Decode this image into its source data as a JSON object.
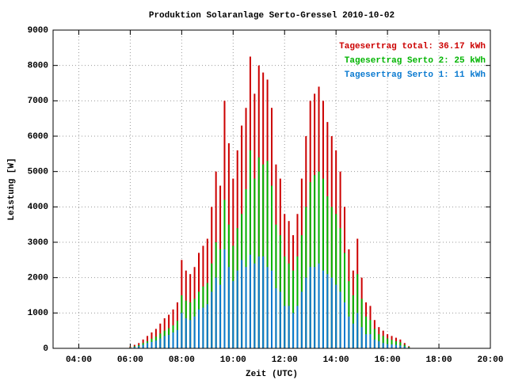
{
  "chart_data": {
    "type": "bar",
    "title": "Produktion Solaranlage Serto-Gressel 2010-10-02",
    "x_label": "Zeit (UTC)",
    "y_label": "Leistung [W]",
    "x": [
      "06:00",
      "06:10",
      "06:20",
      "06:30",
      "06:40",
      "06:50",
      "07:00",
      "07:10",
      "07:20",
      "07:30",
      "07:40",
      "07:50",
      "08:00",
      "08:10",
      "08:20",
      "08:30",
      "08:40",
      "08:50",
      "09:00",
      "09:10",
      "09:20",
      "09:30",
      "09:40",
      "09:50",
      "10:00",
      "10:10",
      "10:20",
      "10:30",
      "10:40",
      "10:50",
      "11:00",
      "11:10",
      "11:20",
      "11:30",
      "11:40",
      "11:50",
      "12:00",
      "12:10",
      "12:20",
      "12:30",
      "12:40",
      "12:50",
      "13:00",
      "13:10",
      "13:20",
      "13:30",
      "13:40",
      "13:50",
      "14:00",
      "14:10",
      "14:20",
      "14:30",
      "14:40",
      "14:50",
      "15:00",
      "15:10",
      "15:20",
      "15:30",
      "15:40",
      "15:50",
      "16:00",
      "16:10",
      "16:20",
      "16:30",
      "16:40",
      "16:50"
    ],
    "series": [
      {
        "name": "Tagesertrag total: 36.17 kWh",
        "color": "#cc0000",
        "values": [
          50,
          100,
          150,
          250,
          350,
          450,
          550,
          700,
          850,
          950,
          1100,
          1300,
          2500,
          2200,
          2100,
          2300,
          2700,
          2900,
          3100,
          4000,
          5000,
          4600,
          7000,
          5800,
          4800,
          5600,
          6300,
          6800,
          8250,
          7200,
          8000,
          7800,
          7600,
          6800,
          5200,
          4800,
          3800,
          3600,
          3200,
          3800,
          4800,
          6000,
          7000,
          7200,
          7400,
          7000,
          6400,
          6000,
          5600,
          5000,
          4000,
          2800,
          2200,
          3100,
          2000,
          1300,
          1200,
          800,
          600,
          500,
          400,
          350,
          300,
          250,
          150,
          60
        ]
      },
      {
        "name": "Tagesertrag Serto 2: 25 kWh",
        "color": "#00b400",
        "values": [
          30,
          60,
          90,
          150,
          200,
          270,
          330,
          420,
          500,
          570,
          650,
          780,
          1500,
          1350,
          1300,
          1400,
          1600,
          1750,
          1850,
          2400,
          3000,
          2800,
          4200,
          3500,
          2900,
          3400,
          3800,
          4500,
          5600,
          4800,
          5400,
          5200,
          5300,
          4600,
          3500,
          3200,
          2600,
          2400,
          2200,
          2600,
          3200,
          4000,
          4700,
          4900,
          5000,
          4800,
          4300,
          4000,
          3800,
          3400,
          2700,
          1900,
          1500,
          2100,
          1400,
          900,
          800,
          550,
          400,
          350,
          280,
          240,
          200,
          170,
          100,
          40
        ]
      },
      {
        "name": "Tagesertrag Serto 1: 11 kWh",
        "color": "#0a7ad0",
        "values": [
          20,
          40,
          60,
          100,
          150,
          180,
          220,
          280,
          350,
          380,
          450,
          520,
          1000,
          850,
          800,
          900,
          1100,
          1150,
          1250,
          1600,
          2000,
          1800,
          2800,
          2300,
          1900,
          2200,
          2500,
          2300,
          2650,
          2400,
          2600,
          2600,
          2300,
          2200,
          1700,
          1600,
          1200,
          1200,
          1000,
          1200,
          1600,
          2000,
          2300,
          2300,
          2400,
          2200,
          2100,
          2000,
          1800,
          1600,
          1300,
          900,
          700,
          1000,
          600,
          400,
          400,
          250,
          200,
          150,
          120,
          110,
          100,
          80,
          50,
          20
        ]
      }
    ],
    "xlim": [
      "03:00",
      "20:00"
    ],
    "xticks": [
      "04:00",
      "06:00",
      "08:00",
      "10:00",
      "12:00",
      "14:00",
      "16:00",
      "18:00",
      "20:00"
    ],
    "ylim": [
      0,
      9000
    ],
    "yticks": [
      0,
      1000,
      2000,
      3000,
      4000,
      5000,
      6000,
      7000,
      8000,
      9000
    ],
    "grid": true,
    "legend": "top-right"
  }
}
